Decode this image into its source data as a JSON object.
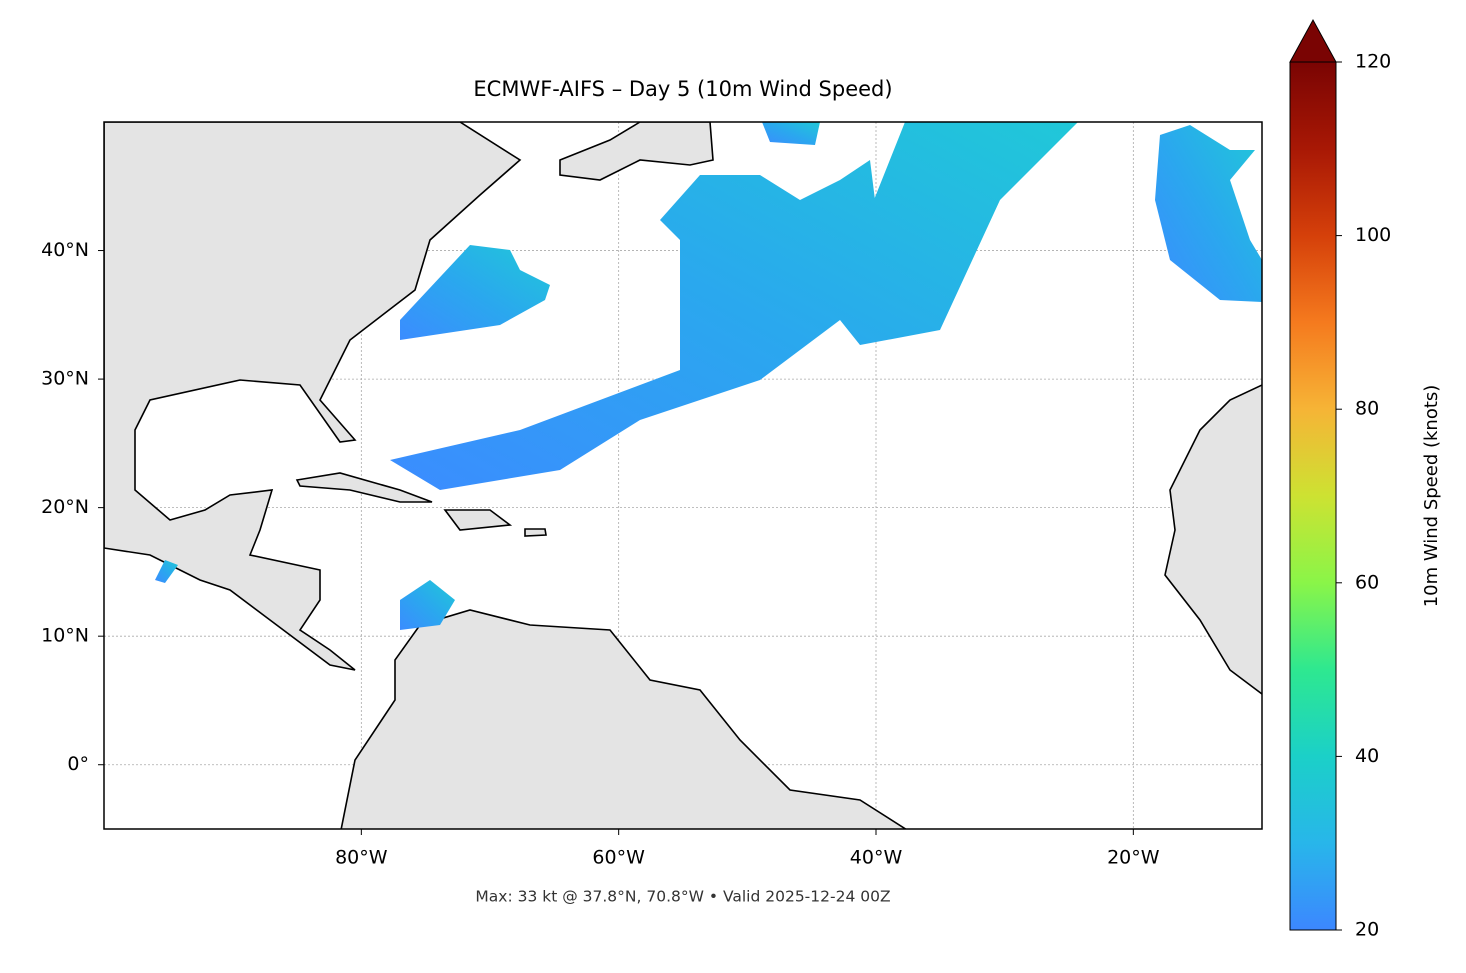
{
  "chart_data": {
    "type": "map",
    "title": "ECMWF-AIFS – Day 5 (10m Wind Speed)",
    "footer": "Max: 33 kt @ 37.8°N, 70.8°W • Valid 2025-12-24 00Z",
    "xlim": [
      -100,
      -10
    ],
    "ylim": [
      -5,
      50
    ],
    "xticks": [
      {
        "value": -80,
        "label": "80°W"
      },
      {
        "value": -60,
        "label": "60°W"
      },
      {
        "value": -40,
        "label": "40°W"
      },
      {
        "value": -20,
        "label": "20°W"
      }
    ],
    "yticks": [
      {
        "value": 0,
        "label": "0°"
      },
      {
        "value": 10,
        "label": "10°N"
      },
      {
        "value": 20,
        "label": "20°N"
      },
      {
        "value": 30,
        "label": "30°N"
      },
      {
        "value": 40,
        "label": "40°N"
      }
    ],
    "grid": true,
    "colorbar": {
      "label": "10m Wind Speed (knots)",
      "lim": [
        20,
        120
      ],
      "ticks": [
        20,
        40,
        60,
        80,
        100,
        120
      ]
    }
  }
}
